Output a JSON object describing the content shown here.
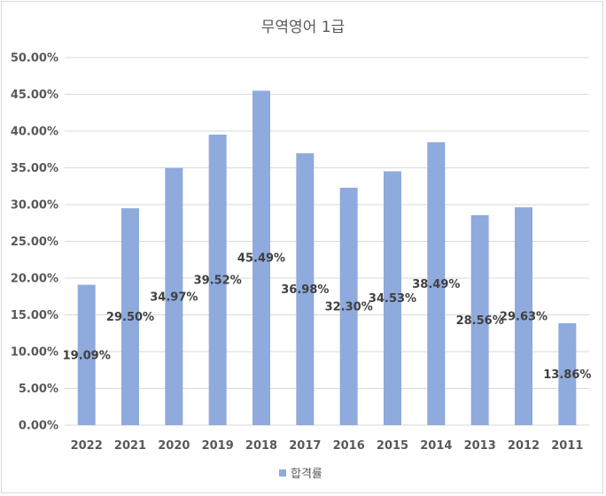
{
  "chart_data": {
    "type": "bar",
    "title": "무역영어 1급",
    "categories": [
      "2022",
      "2021",
      "2020",
      "2019",
      "2018",
      "2017",
      "2016",
      "2015",
      "2014",
      "2013",
      "2012",
      "2011"
    ],
    "series": [
      {
        "name": "합격률",
        "values": [
          19.09,
          29.5,
          34.97,
          39.52,
          45.49,
          36.98,
          32.3,
          34.53,
          38.49,
          28.56,
          29.63,
          13.86
        ],
        "labels": [
          "19.09%",
          "29.50%",
          "34.97%",
          "39.52%",
          "45.49%",
          "36.98%",
          "32.30%",
          "34.53%",
          "38.49%",
          "28.56%",
          "29.63%",
          "13.86%"
        ],
        "color": "#8faadc"
      }
    ],
    "ylim": [
      0,
      50
    ],
    "yticks": [
      0,
      5,
      10,
      15,
      20,
      25,
      30,
      35,
      40,
      45,
      50
    ],
    "ytick_labels": [
      "0.00%",
      "5.00%",
      "10.00%",
      "15.00%",
      "20.00%",
      "25.00%",
      "30.00%",
      "35.00%",
      "40.00%",
      "45.00%",
      "50.00%"
    ],
    "xlabel": "",
    "ylabel": "",
    "grid": true,
    "legend": "bottom"
  },
  "colors": {
    "bar": "#8faadc",
    "grid": "#d9d9d9",
    "text": "#595959"
  }
}
